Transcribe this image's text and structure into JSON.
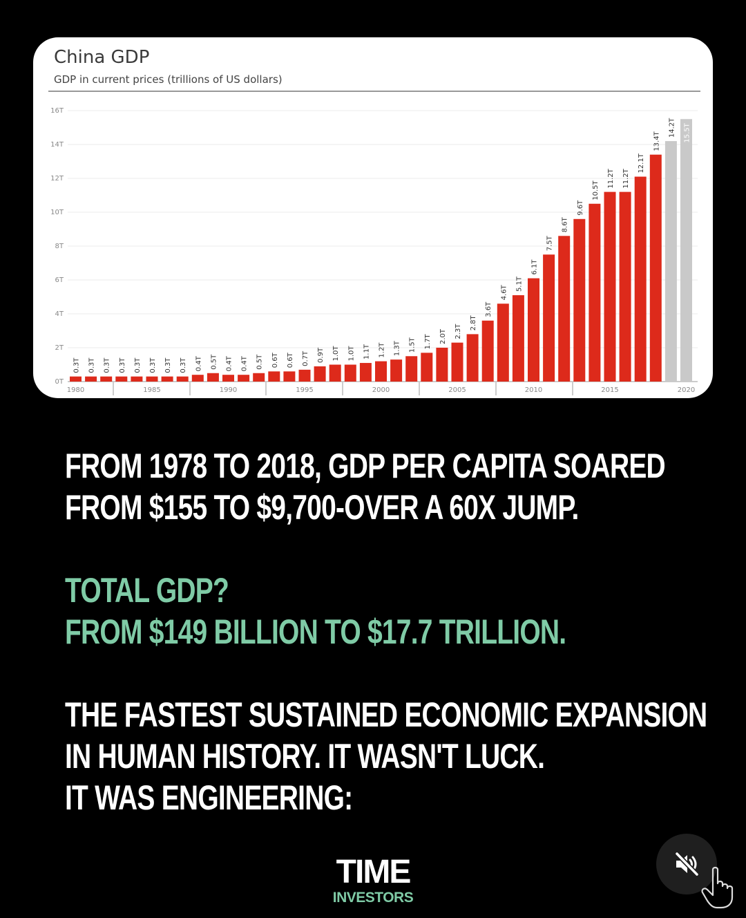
{
  "chart_data": {
    "type": "bar",
    "title": "China GDP",
    "subtitle": "GDP in current prices (trillions of US dollars)",
    "categories": [
      "1980",
      "1981",
      "1982",
      "1983",
      "1984",
      "1985",
      "1986",
      "1987",
      "1988",
      "1989",
      "1990",
      "1991",
      "1992",
      "1993",
      "1994",
      "1995",
      "1996",
      "1997",
      "1998",
      "1999",
      "2000",
      "2001",
      "2002",
      "2003",
      "2004",
      "2005",
      "2006",
      "2007",
      "2008",
      "2009",
      "2010",
      "2011",
      "2012",
      "2013",
      "2014",
      "2015",
      "2016",
      "2017",
      "2018",
      "2019",
      "2020"
    ],
    "values": [
      0.3,
      0.3,
      0.3,
      0.3,
      0.3,
      0.3,
      0.3,
      0.3,
      0.4,
      0.5,
      0.4,
      0.4,
      0.5,
      0.6,
      0.6,
      0.7,
      0.9,
      1.0,
      1.0,
      1.1,
      1.2,
      1.3,
      1.5,
      1.7,
      2.0,
      2.3,
      2.8,
      3.6,
      4.6,
      5.1,
      6.1,
      7.5,
      8.6,
      9.6,
      10.5,
      11.2,
      11.2,
      12.1,
      13.4,
      14.2,
      15.5
    ],
    "data_labels": [
      "0.3T",
      "0.3T",
      "0.3T",
      "0.3T",
      "0.3T",
      "0.3T",
      "0.3T",
      "0.3T",
      "0.4T",
      "0.5T",
      "0.4T",
      "0.4T",
      "0.5T",
      "0.6T",
      "0.6T",
      "0.7T",
      "0.9T",
      "1.0T",
      "1.0T",
      "1.1T",
      "1.2T",
      "1.3T",
      "1.5T",
      "1.7T",
      "2.0T",
      "2.3T",
      "2.8T",
      "3.6T",
      "4.6T",
      "5.1T",
      "6.1T",
      "7.5T",
      "8.6T",
      "9.6T",
      "10.5T",
      "11.2T",
      "11.2T",
      "12.1T",
      "13.4T",
      "14.2T",
      "15.5T"
    ],
    "estimated_years": [
      "2019",
      "2020"
    ],
    "x_tick_labels": [
      "1980",
      "1985",
      "1990",
      "1995",
      "2000",
      "2005",
      "2010",
      "2015",
      "2020"
    ],
    "y_tick_labels": [
      "0T",
      "2T",
      "4T",
      "6T",
      "8T",
      "10T",
      "12T",
      "14T",
      "16T"
    ],
    "ylim": [
      0,
      16
    ],
    "grid": true,
    "colors": {
      "actual": "#dd2a1b",
      "estimate": "#c9c9c9",
      "grid": "#ebebeb"
    }
  },
  "text_blocks": {
    "block1": [
      "FROM 1978 TO 2018, GDP PER CAPITA SOARED",
      "FROM $155 TO $9,700-OVER A 60X JUMP."
    ],
    "block2": [
      "TOTAL GDP?",
      "FROM $149 BILLION TO $17.7 TRILLION."
    ],
    "block3": [
      "THE FASTEST SUSTAINED ECONOMIC EXPANSION",
      "IN HUMAN HISTORY. IT WASN'T LUCK.",
      "IT WAS ENGINEERING:"
    ]
  },
  "logo": {
    "main": "TIME",
    "sub": "INVESTORS"
  },
  "mute_button": {
    "icon": "muted-speaker-icon"
  },
  "cursor": {
    "icon": "hand-pointer-icon"
  },
  "colors": {
    "background": "#000000",
    "accent_green": "#7fcba6",
    "text": "#ffffff"
  }
}
